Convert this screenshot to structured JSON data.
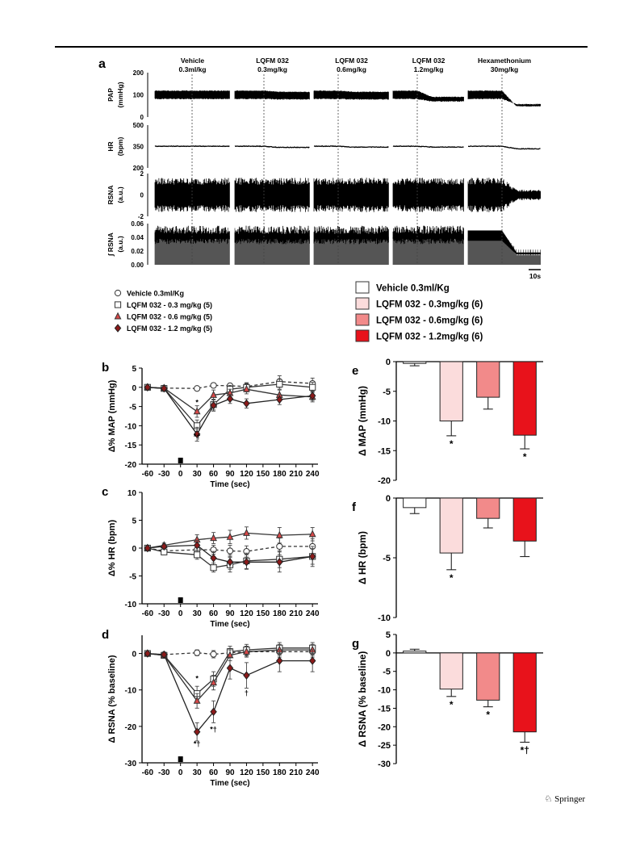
{
  "page": {
    "publisher": "Springer",
    "publisher_icon": "springer-horse-icon"
  },
  "panel_a": {
    "letter": "a",
    "conditions": [
      {
        "name": "Vehicle",
        "dose": "0.3ml/kg"
      },
      {
        "name": "LQFM 032",
        "dose": "0.3mg/kg"
      },
      {
        "name": "LQFM 032",
        "dose": "0.6mg/kg"
      },
      {
        "name": "LQFM 032",
        "dose": "1.2mg/kg"
      },
      {
        "name": "Hexamethonium",
        "dose": "30mg/kg"
      }
    ],
    "traces": [
      {
        "label": "PAP",
        "unit": "(mmHg)",
        "ticks": [
          "200",
          "100",
          "0"
        ],
        "kind": "pressure",
        "tick_values": [
          200,
          100,
          0
        ]
      },
      {
        "label": "HR",
        "unit": "(bpm)",
        "ticks": [
          "500",
          "350",
          "200"
        ],
        "kind": "line",
        "tick_values": [
          500,
          350,
          200
        ]
      },
      {
        "label": "RSNA",
        "unit": "(a.u.)",
        "ticks": [
          "2",
          "0",
          "-2"
        ],
        "kind": "noise",
        "tick_values": [
          2,
          0,
          -2
        ]
      },
      {
        "label": "∫ RSNA",
        "unit": "(a.u.)",
        "ticks": [
          "0.06",
          "0.04",
          "0.02",
          "0.00"
        ],
        "kind": "integrated",
        "tick_values": [
          0.06,
          0.04,
          0.02,
          0.0
        ]
      }
    ],
    "scale_bar": "10s"
  },
  "legend_left": [
    {
      "label": "Vehicle 0.3ml/Kg",
      "marker": "circle-open"
    },
    {
      "label": "LQFM 032 - 0.3 mg/kg (5)",
      "marker": "square-open"
    },
    {
      "label": "LQFM 032 - 0.6 mg/kg (5)",
      "marker": "triangle-red"
    },
    {
      "label": "LQFM 032 - 1.2 mg/kg (5)",
      "marker": "diamond-darkred"
    }
  ],
  "legend_right": [
    {
      "label": "Vehicle 0.3ml/Kg",
      "color": "#ffffff"
    },
    {
      "label": "LQFM 032 - 0.3mg/kg (6)",
      "color": "#fbdcdc"
    },
    {
      "label": "LQFM 032 - 0.6mg/kg (6)",
      "color": "#f28a8a"
    },
    {
      "label": "LQFM 032 - 1.2mg/kg (6)",
      "color": "#e8121b"
    }
  ],
  "chart_data": [
    {
      "panel": "b",
      "type": "line",
      "xlabel": "Time (sec)",
      "ylabel": "Δ% MAP (mmHg)",
      "x_ticks": [
        -60,
        -30,
        0,
        30,
        60,
        90,
        120,
        150,
        180,
        210,
        240
      ],
      "xlim": [
        -70,
        250
      ],
      "ylim": [
        -20,
        5
      ],
      "y_ticks": [
        5,
        0,
        -5,
        -10,
        -15,
        -20
      ],
      "x": [
        -60,
        -30,
        30,
        60,
        90,
        120,
        180,
        240
      ],
      "series": [
        {
          "name": "Vehicle 0.3ml/Kg",
          "values": [
            0,
            -0.2,
            -0.3,
            0.5,
            0.4,
            0.2,
            1.5,
            1.0
          ],
          "errors": [
            0.3,
            0.4,
            0.4,
            0.6,
            0.6,
            0.8,
            1.5,
            1.4
          ]
        },
        {
          "name": "LQFM 032 - 0.3 mg/kg (5)",
          "values": [
            0,
            -0.3,
            -10.0,
            -4.5,
            -0.5,
            0.0,
            0.8,
            0.0
          ],
          "errors": [
            0.3,
            0.4,
            1.5,
            1.4,
            1.0,
            1.2,
            1.3,
            1.3
          ]
        },
        {
          "name": "LQFM 032 - 0.6 mg/kg (5)",
          "values": [
            0,
            -0.2,
            -6.3,
            -2.0,
            -1.5,
            -0.5,
            -2.0,
            -2.5
          ],
          "errors": [
            0.3,
            0.4,
            1.5,
            1.3,
            1.0,
            1.2,
            1.3,
            1.3
          ]
        },
        {
          "name": "LQFM 032 - 1.2 mg/kg (5)",
          "values": [
            0,
            -0.3,
            -12.2,
            -4.7,
            -3.0,
            -4.2,
            -3.2,
            -2.2
          ],
          "errors": [
            0.3,
            0.4,
            1.8,
            1.5,
            1.2,
            1.2,
            1.3,
            1.2
          ]
        }
      ],
      "annotations": [
        {
          "x": 30,
          "y": -13.5,
          "text": "*†"
        },
        {
          "x": 30,
          "y": -4.6,
          "text": "*"
        }
      ],
      "marker_bar_x": 0
    },
    {
      "panel": "c",
      "type": "line",
      "xlabel": "Time (sec)",
      "ylabel": "Δ% HR (bpm)",
      "x_ticks": [
        -60,
        -30,
        0,
        30,
        60,
        90,
        120,
        150,
        180,
        210,
        240
      ],
      "xlim": [
        -70,
        250
      ],
      "ylim": [
        -10,
        10
      ],
      "y_ticks": [
        10,
        5,
        0,
        -5,
        -10
      ],
      "x": [
        -60,
        -30,
        30,
        60,
        90,
        120,
        180,
        240
      ],
      "series": [
        {
          "name": "Vehicle 0.3ml/Kg",
          "values": [
            0,
            -0.5,
            -0.3,
            -0.3,
            -0.5,
            -0.6,
            0.3,
            0.3
          ],
          "errors": [
            0.3,
            0.4,
            0.8,
            0.8,
            1.0,
            1.0,
            1.5,
            1.4
          ]
        },
        {
          "name": "LQFM 032 - 0.3 mg/kg (5)",
          "values": [
            0,
            -0.7,
            -1.2,
            -3.5,
            -3.0,
            -2.3,
            -2.0,
            -1.5
          ],
          "errors": [
            0.3,
            0.4,
            0.8,
            0.8,
            1.3,
            1.4,
            1.5,
            1.4
          ]
        },
        {
          "name": "LQFM 032 - 0.6 mg/kg (5)",
          "values": [
            0,
            0.5,
            1.5,
            1.8,
            2.0,
            2.7,
            2.3,
            2.5
          ],
          "errors": [
            0.3,
            0.4,
            0.9,
            1.0,
            1.2,
            1.1,
            1.4,
            1.2
          ]
        },
        {
          "name": "LQFM 032 - 1.2 mg/kg (5)",
          "values": [
            0,
            0.3,
            0.5,
            -1.8,
            -2.5,
            -2.5,
            -2.5,
            -1.5
          ],
          "errors": [
            0.3,
            0.4,
            0.9,
            1.2,
            1.3,
            1.3,
            1.8,
            1.8
          ]
        }
      ],
      "annotations": [],
      "marker_bar_x": 0
    },
    {
      "panel": "d",
      "type": "line",
      "xlabel": "Time (sec)",
      "ylabel": "Δ RSNA (% baseline)",
      "x_ticks": [
        -60,
        -30,
        0,
        30,
        60,
        90,
        120,
        150,
        180,
        210,
        240
      ],
      "xlim": [
        -70,
        250
      ],
      "ylim": [
        -30,
        5
      ],
      "y_ticks": [
        0,
        -10,
        -20,
        -30
      ],
      "x": [
        -60,
        -30,
        30,
        60,
        90,
        120,
        180,
        240
      ],
      "series": [
        {
          "name": "Vehicle 0.3ml/Kg",
          "values": [
            0,
            -0.3,
            0.2,
            -0.2,
            0.2,
            0.5,
            0.5,
            0.5
          ],
          "errors": [
            0.5,
            0.6,
            0.8,
            1.0,
            1.2,
            1.2,
            1.5,
            1.5
          ]
        },
        {
          "name": "LQFM 032 - 0.3 mg/kg (5)",
          "values": [
            0,
            -0.5,
            -11.0,
            -7.0,
            0.5,
            1.0,
            1.5,
            1.5
          ],
          "errors": [
            0.5,
            0.6,
            2.0,
            2.0,
            1.5,
            1.5,
            1.5,
            1.5
          ]
        },
        {
          "name": "LQFM 032 - 0.6 mg/kg (5)",
          "values": [
            0,
            -0.5,
            -13.0,
            -8.0,
            -0.5,
            0.5,
            1.0,
            1.0
          ],
          "errors": [
            0.5,
            0.6,
            2.0,
            2.0,
            1.5,
            1.5,
            1.5,
            1.5
          ]
        },
        {
          "name": "LQFM 032 - 1.2 mg/kg (5)",
          "values": [
            0,
            -0.3,
            -21.5,
            -16.0,
            -4.0,
            -6.0,
            -2.0,
            -2.0
          ],
          "errors": [
            0.5,
            0.6,
            2.5,
            3.0,
            3.0,
            3.5,
            3.0,
            3.0
          ]
        }
      ],
      "annotations": [
        {
          "x": 30,
          "y": -25.5,
          "text": "*†"
        },
        {
          "x": 60,
          "y": -21.5,
          "text": "*†"
        },
        {
          "x": 120,
          "y": -11.5,
          "text": "†"
        },
        {
          "x": 30,
          "y": -7.5,
          "text": "*"
        }
      ],
      "marker_bar_x": 0
    },
    {
      "panel": "e",
      "type": "bar",
      "ylabel": "Δ MAP (mmHg)",
      "ylim": [
        -20,
        0
      ],
      "y_ticks": [
        0,
        -5,
        -10,
        -15,
        -20
      ],
      "categories": [
        "Vehicle 0.3ml/Kg",
        "LQFM 032 - 0.3mg/kg (6)",
        "LQFM 032 - 0.6mg/kg (6)",
        "LQFM 032 - 1.2mg/kg (6)"
      ],
      "values": [
        -0.3,
        -10.0,
        -6.0,
        -12.4
      ],
      "errors": [
        0.4,
        2.5,
        2.0,
        2.3
      ],
      "labels": [
        "",
        "*",
        "",
        "*"
      ]
    },
    {
      "panel": "f",
      "type": "bar",
      "ylabel": "Δ HR (bpm)",
      "ylim": [
        -10,
        0
      ],
      "y_ticks": [
        0,
        -5,
        -10
      ],
      "categories": [
        "Vehicle 0.3ml/Kg",
        "LQFM 032 - 0.3mg/kg (6)",
        "LQFM 032 - 0.6mg/kg (6)",
        "LQFM 032 - 1.2mg/kg (6)"
      ],
      "values": [
        -0.8,
        -4.6,
        -1.7,
        -3.6
      ],
      "errors": [
        0.5,
        1.4,
        0.8,
        1.3
      ],
      "labels": [
        "",
        "*",
        "",
        ""
      ]
    },
    {
      "panel": "g",
      "type": "bar",
      "ylabel": "Δ RSNA (% baseline)",
      "ylim": [
        -30,
        5
      ],
      "y_ticks": [
        5,
        0,
        -5,
        -10,
        -15,
        -20,
        -25,
        -30
      ],
      "categories": [
        "Vehicle 0.3ml/Kg",
        "LQFM 032 - 0.3mg/kg (6)",
        "LQFM 032 - 0.6mg/kg (6)",
        "LQFM 032 - 1.2mg/kg (6)"
      ],
      "values": [
        0.5,
        -9.8,
        -12.8,
        -21.4
      ],
      "errors": [
        0.5,
        2.0,
        1.8,
        2.8
      ],
      "labels": [
        "",
        "*",
        "*",
        "*†"
      ]
    }
  ]
}
